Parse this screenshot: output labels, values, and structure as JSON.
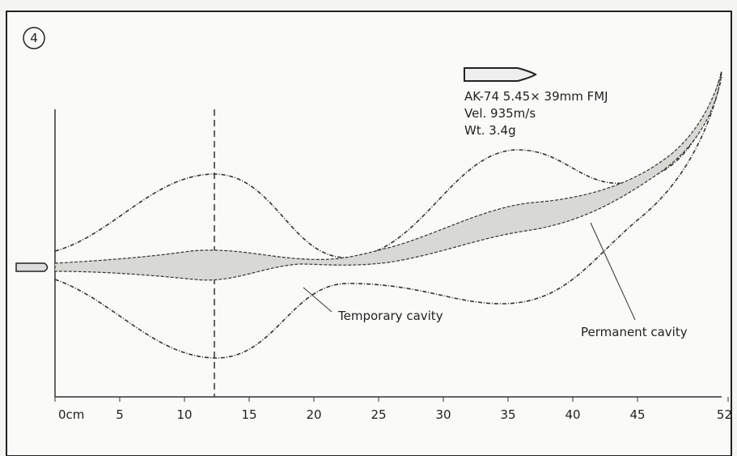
{
  "figure_number": "4",
  "bullet": {
    "name": "AK-74 5.45× 39mm FMJ",
    "velocity": "Vel. 935m/s",
    "weight": "Wt. 3.4g"
  },
  "labels": {
    "temporary_cavity": "Temporary cavity",
    "permanent_cavity": "Permanent cavity"
  },
  "axis": {
    "ticks": [
      {
        "value": 0,
        "label": "0cm"
      },
      5,
      10,
      15,
      20,
      25,
      30,
      35,
      40,
      45,
      52
    ]
  }
}
